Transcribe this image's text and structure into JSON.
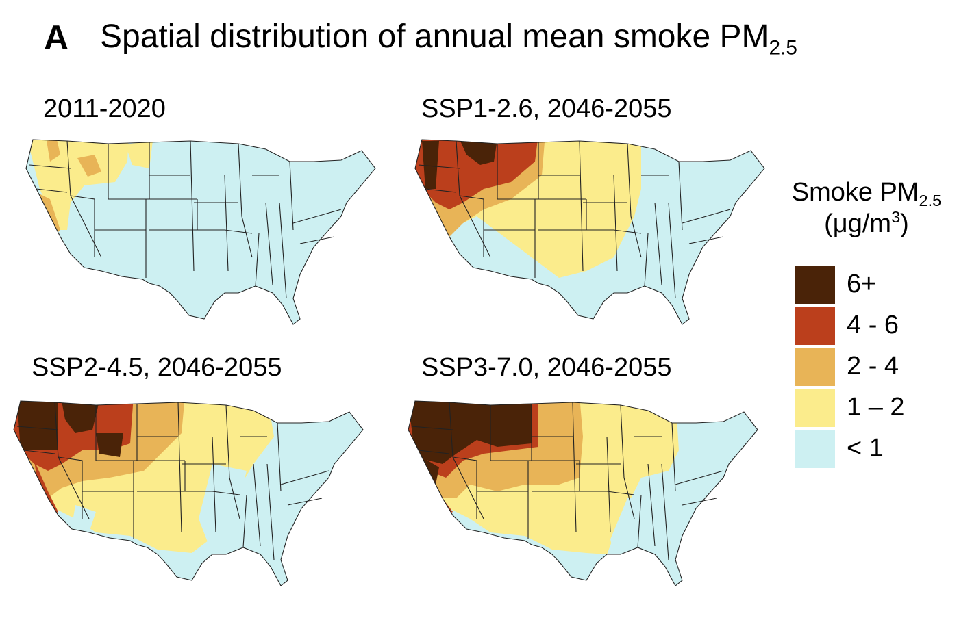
{
  "figure": {
    "panel_letter": "A",
    "title": "Spatial distribution of annual mean smoke PM",
    "title_subscript": "2.5"
  },
  "maps": [
    {
      "label": "2011-2020",
      "scenario": "historical"
    },
    {
      "label": "SSP1-2.6, 2046-2055",
      "scenario": "ssp126"
    },
    {
      "label": "SSP2-4.5, 2046-2055",
      "scenario": "ssp245"
    },
    {
      "label": "SSP3-7.0, 2046-2055",
      "scenario": "ssp370"
    }
  ],
  "legend": {
    "title_line1": "Smoke PM",
    "title_subscript": "2.5",
    "unit_prefix": "(μg/m",
    "unit_superscript": "3",
    "unit_suffix": ")",
    "items": [
      {
        "label": "6+",
        "color": "#4a2308"
      },
      {
        "label": "4 - 6",
        "color": "#bb3f1c"
      },
      {
        "label": "2 - 4",
        "color": "#e8b457"
      },
      {
        "label": "1 – 2",
        "color": "#fbec8c"
      },
      {
        "label": "< 1",
        "color": "#cdf0f2"
      }
    ]
  }
}
